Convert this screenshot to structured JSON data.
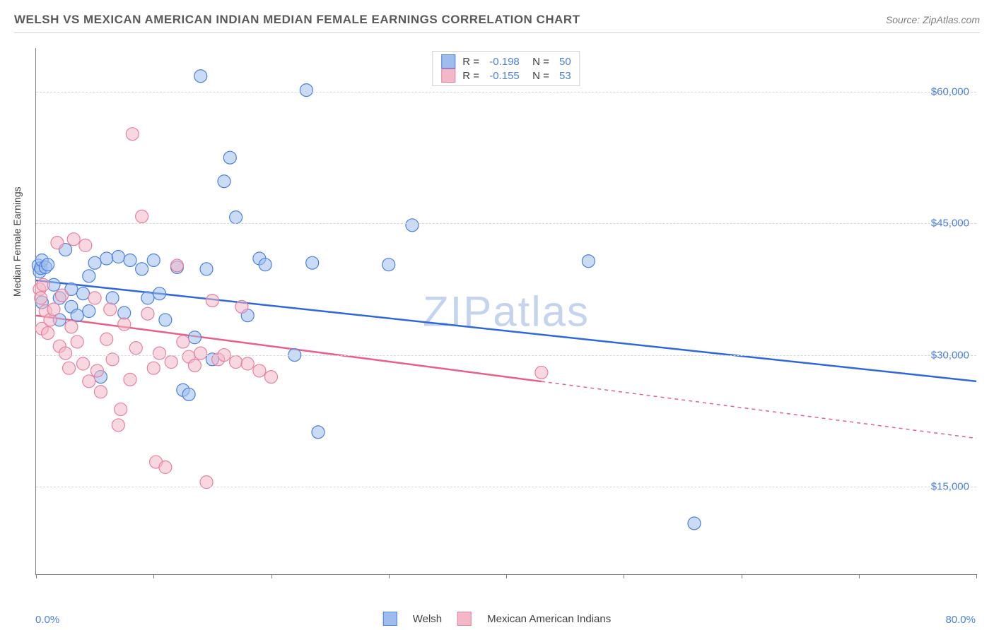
{
  "header": {
    "title": "WELSH VS MEXICAN AMERICAN INDIAN MEDIAN FEMALE EARNINGS CORRELATION CHART",
    "source": "Source: ZipAtlas.com"
  },
  "chart": {
    "type": "scatter",
    "watermark": "ZIPatlas",
    "ylabel": "Median Female Earnings",
    "xlim": [
      0,
      80
    ],
    "ylim": [
      5000,
      65000
    ],
    "xaxis_min_label": "0.0%",
    "xaxis_max_label": "80.0%",
    "yticks": [
      15000,
      30000,
      45000,
      60000
    ],
    "ytick_labels": [
      "$15,000",
      "$30,000",
      "$45,000",
      "$60,000"
    ],
    "xtick_positions": [
      0,
      10,
      20,
      30,
      40,
      50,
      60,
      70,
      80
    ],
    "grid_color": "#d8d8d8",
    "background": "#ffffff",
    "series": [
      {
        "name": "Welsh",
        "fill": "#9fbdec",
        "fill_opacity": 0.55,
        "stroke": "#4a7fe0",
        "line_color": "#2f68d8",
        "R": "-0.198",
        "N": "50",
        "trend": {
          "x1": 0,
          "y1": 38500,
          "x2": 80,
          "y2": 27000,
          "solid_to_x": 80
        },
        "points": [
          [
            0.2,
            40200
          ],
          [
            0.3,
            39500
          ],
          [
            0.4,
            39900
          ],
          [
            0.5,
            40800
          ],
          [
            0.5,
            36000
          ],
          [
            1.5,
            38000
          ],
          [
            2.0,
            36500
          ],
          [
            2.0,
            34000
          ],
          [
            2.5,
            42000
          ],
          [
            3.0,
            35500
          ],
          [
            3.0,
            37500
          ],
          [
            3.5,
            34500
          ],
          [
            4.0,
            37000
          ],
          [
            4.5,
            35000
          ],
          [
            4.5,
            39000
          ],
          [
            5.0,
            40500
          ],
          [
            5.5,
            27500
          ],
          [
            6.0,
            41000
          ],
          [
            6.5,
            36500
          ],
          [
            7.0,
            41200
          ],
          [
            7.5,
            34800
          ],
          [
            8.0,
            40800
          ],
          [
            9.0,
            39800
          ],
          [
            9.5,
            36500
          ],
          [
            10.0,
            40800
          ],
          [
            10.5,
            37000
          ],
          [
            11.0,
            34000
          ],
          [
            12.0,
            40000
          ],
          [
            12.5,
            26000
          ],
          [
            13.0,
            25500
          ],
          [
            13.5,
            32000
          ],
          [
            14.0,
            61800
          ],
          [
            14.5,
            39800
          ],
          [
            15.0,
            29500
          ],
          [
            16.0,
            49800
          ],
          [
            16.5,
            52500
          ],
          [
            17.0,
            45700
          ],
          [
            18.0,
            34500
          ],
          [
            19.0,
            41000
          ],
          [
            19.5,
            40300
          ],
          [
            22.0,
            30000
          ],
          [
            23.0,
            60200
          ],
          [
            23.5,
            40500
          ],
          [
            24.0,
            21200
          ],
          [
            30.0,
            40300
          ],
          [
            32.0,
            44800
          ],
          [
            47.0,
            40700
          ],
          [
            56.0,
            10800
          ],
          [
            0.8,
            40000
          ],
          [
            1.0,
            40300
          ]
        ]
      },
      {
        "name": "Mexican American Indians",
        "fill": "#f3b8c7",
        "fill_opacity": 0.55,
        "stroke": "#e87f9e",
        "line_color": "#e85f87",
        "R": "-0.155",
        "N": "53",
        "trend": {
          "x1": 0,
          "y1": 34500,
          "x2": 80,
          "y2": 20500,
          "solid_to_x": 43
        },
        "points": [
          [
            0.3,
            37500
          ],
          [
            0.4,
            36500
          ],
          [
            0.5,
            33000
          ],
          [
            0.8,
            35000
          ],
          [
            1.0,
            32500
          ],
          [
            1.2,
            34000
          ],
          [
            1.5,
            35200
          ],
          [
            1.8,
            42800
          ],
          [
            2.0,
            31000
          ],
          [
            2.2,
            36800
          ],
          [
            2.5,
            30200
          ],
          [
            2.8,
            28500
          ],
          [
            3.0,
            33200
          ],
          [
            3.2,
            43200
          ],
          [
            3.5,
            31500
          ],
          [
            4.0,
            29000
          ],
          [
            4.2,
            42500
          ],
          [
            4.5,
            27000
          ],
          [
            5.0,
            36500
          ],
          [
            5.2,
            28200
          ],
          [
            5.5,
            25800
          ],
          [
            6.0,
            31800
          ],
          [
            6.3,
            35200
          ],
          [
            6.5,
            29500
          ],
          [
            7.0,
            22000
          ],
          [
            7.2,
            23800
          ],
          [
            7.5,
            33500
          ],
          [
            8.0,
            27200
          ],
          [
            8.2,
            55200
          ],
          [
            8.5,
            30800
          ],
          [
            9.0,
            45800
          ],
          [
            9.5,
            34700
          ],
          [
            10.0,
            28500
          ],
          [
            10.2,
            17800
          ],
          [
            10.5,
            30200
          ],
          [
            11.0,
            17200
          ],
          [
            11.5,
            29200
          ],
          [
            12.0,
            40200
          ],
          [
            12.5,
            31500
          ],
          [
            13.0,
            29800
          ],
          [
            13.5,
            28800
          ],
          [
            14.0,
            30200
          ],
          [
            14.5,
            15500
          ],
          [
            15.0,
            36200
          ],
          [
            15.5,
            29500
          ],
          [
            16.0,
            30000
          ],
          [
            17.0,
            29200
          ],
          [
            17.5,
            35500
          ],
          [
            18.0,
            29000
          ],
          [
            19.0,
            28200
          ],
          [
            20.0,
            27500
          ],
          [
            43.0,
            28000
          ],
          [
            0.6,
            38000
          ]
        ]
      }
    ],
    "legend_bottom": [
      {
        "swatch_fill": "#9fbdec",
        "swatch_stroke": "#4a7fe0",
        "label": "Welsh"
      },
      {
        "swatch_fill": "#f3b8c7",
        "swatch_stroke": "#e87f9e",
        "label": "Mexican American Indians"
      }
    ],
    "marker_radius": 9
  }
}
